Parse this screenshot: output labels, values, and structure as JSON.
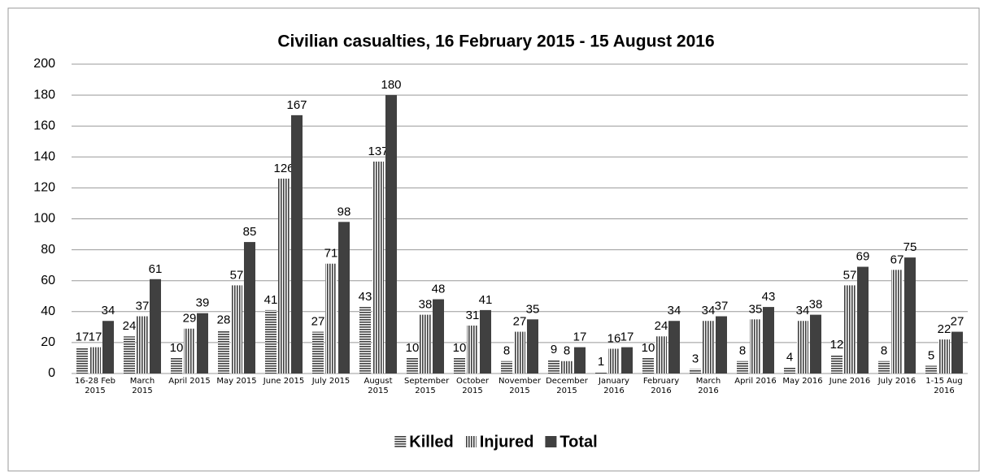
{
  "chart_data": {
    "type": "bar",
    "title": "Civilian casualties, 16 February 2015 - 15 August 2016",
    "categories": [
      "16-28 Feb 2015",
      "March 2015",
      "April 2015",
      "May 2015",
      "June 2015",
      "July 2015",
      "August 2015",
      "September 2015",
      "October 2015",
      "November 2015",
      "December 2015",
      "January 2016",
      "February 2016",
      "March 2016",
      "April 2016",
      "May 2016",
      "June 2016",
      "July 2016",
      "1-15 Aug 2016"
    ],
    "series": [
      {
        "name": "Killed",
        "color": "#404040",
        "pattern": "horizontal",
        "values": [
          17,
          24,
          10,
          28,
          41,
          27,
          43,
          10,
          10,
          8,
          9,
          1,
          10,
          3,
          8,
          4,
          12,
          8,
          5
        ]
      },
      {
        "name": "Injured",
        "color": "#404040",
        "pattern": "vertical",
        "values": [
          17,
          37,
          29,
          57,
          126,
          71,
          137,
          38,
          31,
          27,
          8,
          16,
          24,
          34,
          35,
          34,
          57,
          67,
          22
        ]
      },
      {
        "name": "Total",
        "color": "#404040",
        "pattern": "solid",
        "values": [
          34,
          61,
          39,
          85,
          167,
          98,
          180,
          48,
          41,
          35,
          17,
          17,
          34,
          37,
          43,
          38,
          69,
          75,
          27
        ]
      }
    ],
    "ylim": [
      0,
      200
    ],
    "yticks": [
      0,
      20,
      40,
      60,
      80,
      100,
      120,
      140,
      160,
      180,
      200
    ],
    "grid": true,
    "legend": "bottom"
  }
}
